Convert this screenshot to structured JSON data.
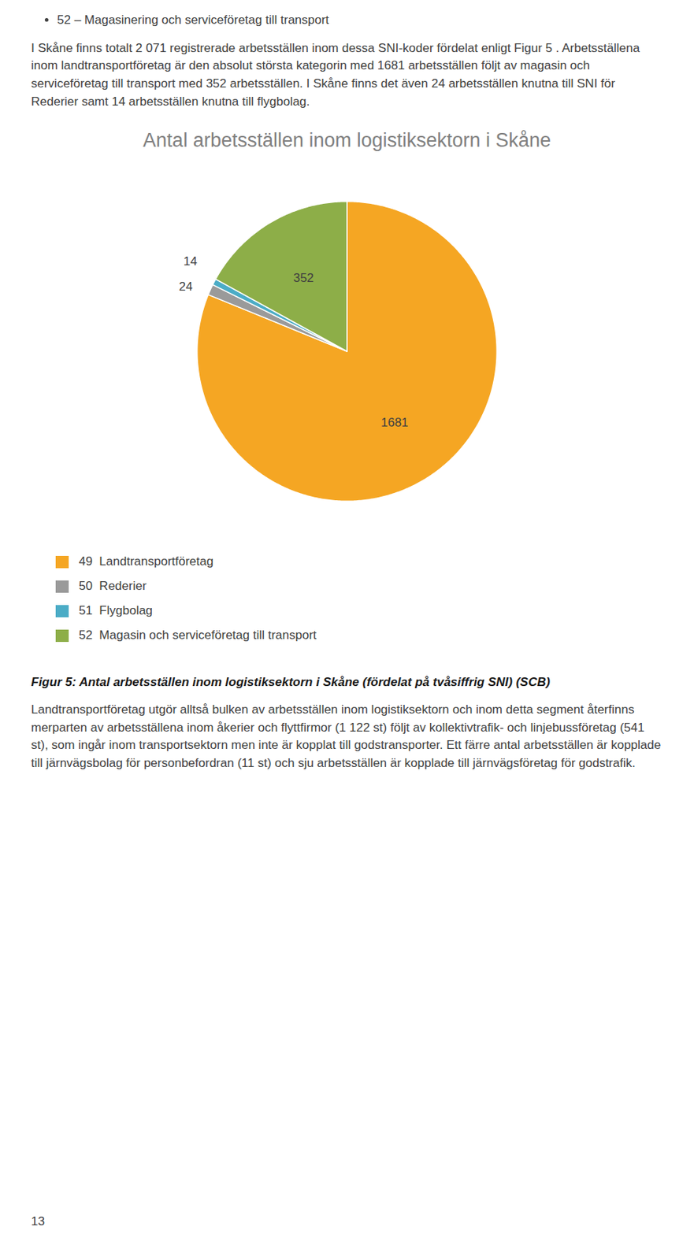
{
  "chart_data": {
    "type": "pie",
    "title": "Antal arbetsställen inom logistiksektorn i Skåne",
    "categories": [
      "49  Landtransportföretag",
      "50  Rederier",
      "51  Flygbolag",
      "52  Magasin och serviceföretag till transport"
    ],
    "values": [
      1681,
      24,
      14,
      352
    ],
    "colors": [
      "#F5A623",
      "#9A9A9A",
      "#4BACC6",
      "#8DAE48"
    ],
    "data_labels": true,
    "legend": "bottom",
    "annotations": [
      "52 – Magasinering och serviceföretag till transport",
      "I Skåne finns totalt 2 071 registrerade arbetsställen inom dessa SNI-koder fördelat enligt Figur 5 . Arbetsställena inom landtransportföretag är den absolut största kategorin med 1681 arbetsställen följt av magasin och serviceföretag till transport med 352 arbetsställen. I Skåne finns det även 24 arbetsställen knutna till SNI för Rederier samt 14 arbetsställen knutna till flygbolag.",
      "Figur 5: Antal arbetsställen inom logistiksektorn i Skåne (fördelat på tvåsiffrig SNI) (SCB)",
      "Landtransportföretag utgör alltså bulken av arbetsställen inom logistiksektorn och inom detta segment återfinns merparten av arbetsställena inom åkerier och flyttfirmor (1 122 st) följt av kollektivtrafik- och linjebussföretag (541 st), som ingår inom transportsektorn men inte är kopplat till godstransporter. Ett färre antal arbetsställen är kopplade till järnvägsbolag för personbefordran (11 st) och sju arbetsställen är kopplade till järnvägsföretag för godstrafik.",
      "13"
    ]
  }
}
